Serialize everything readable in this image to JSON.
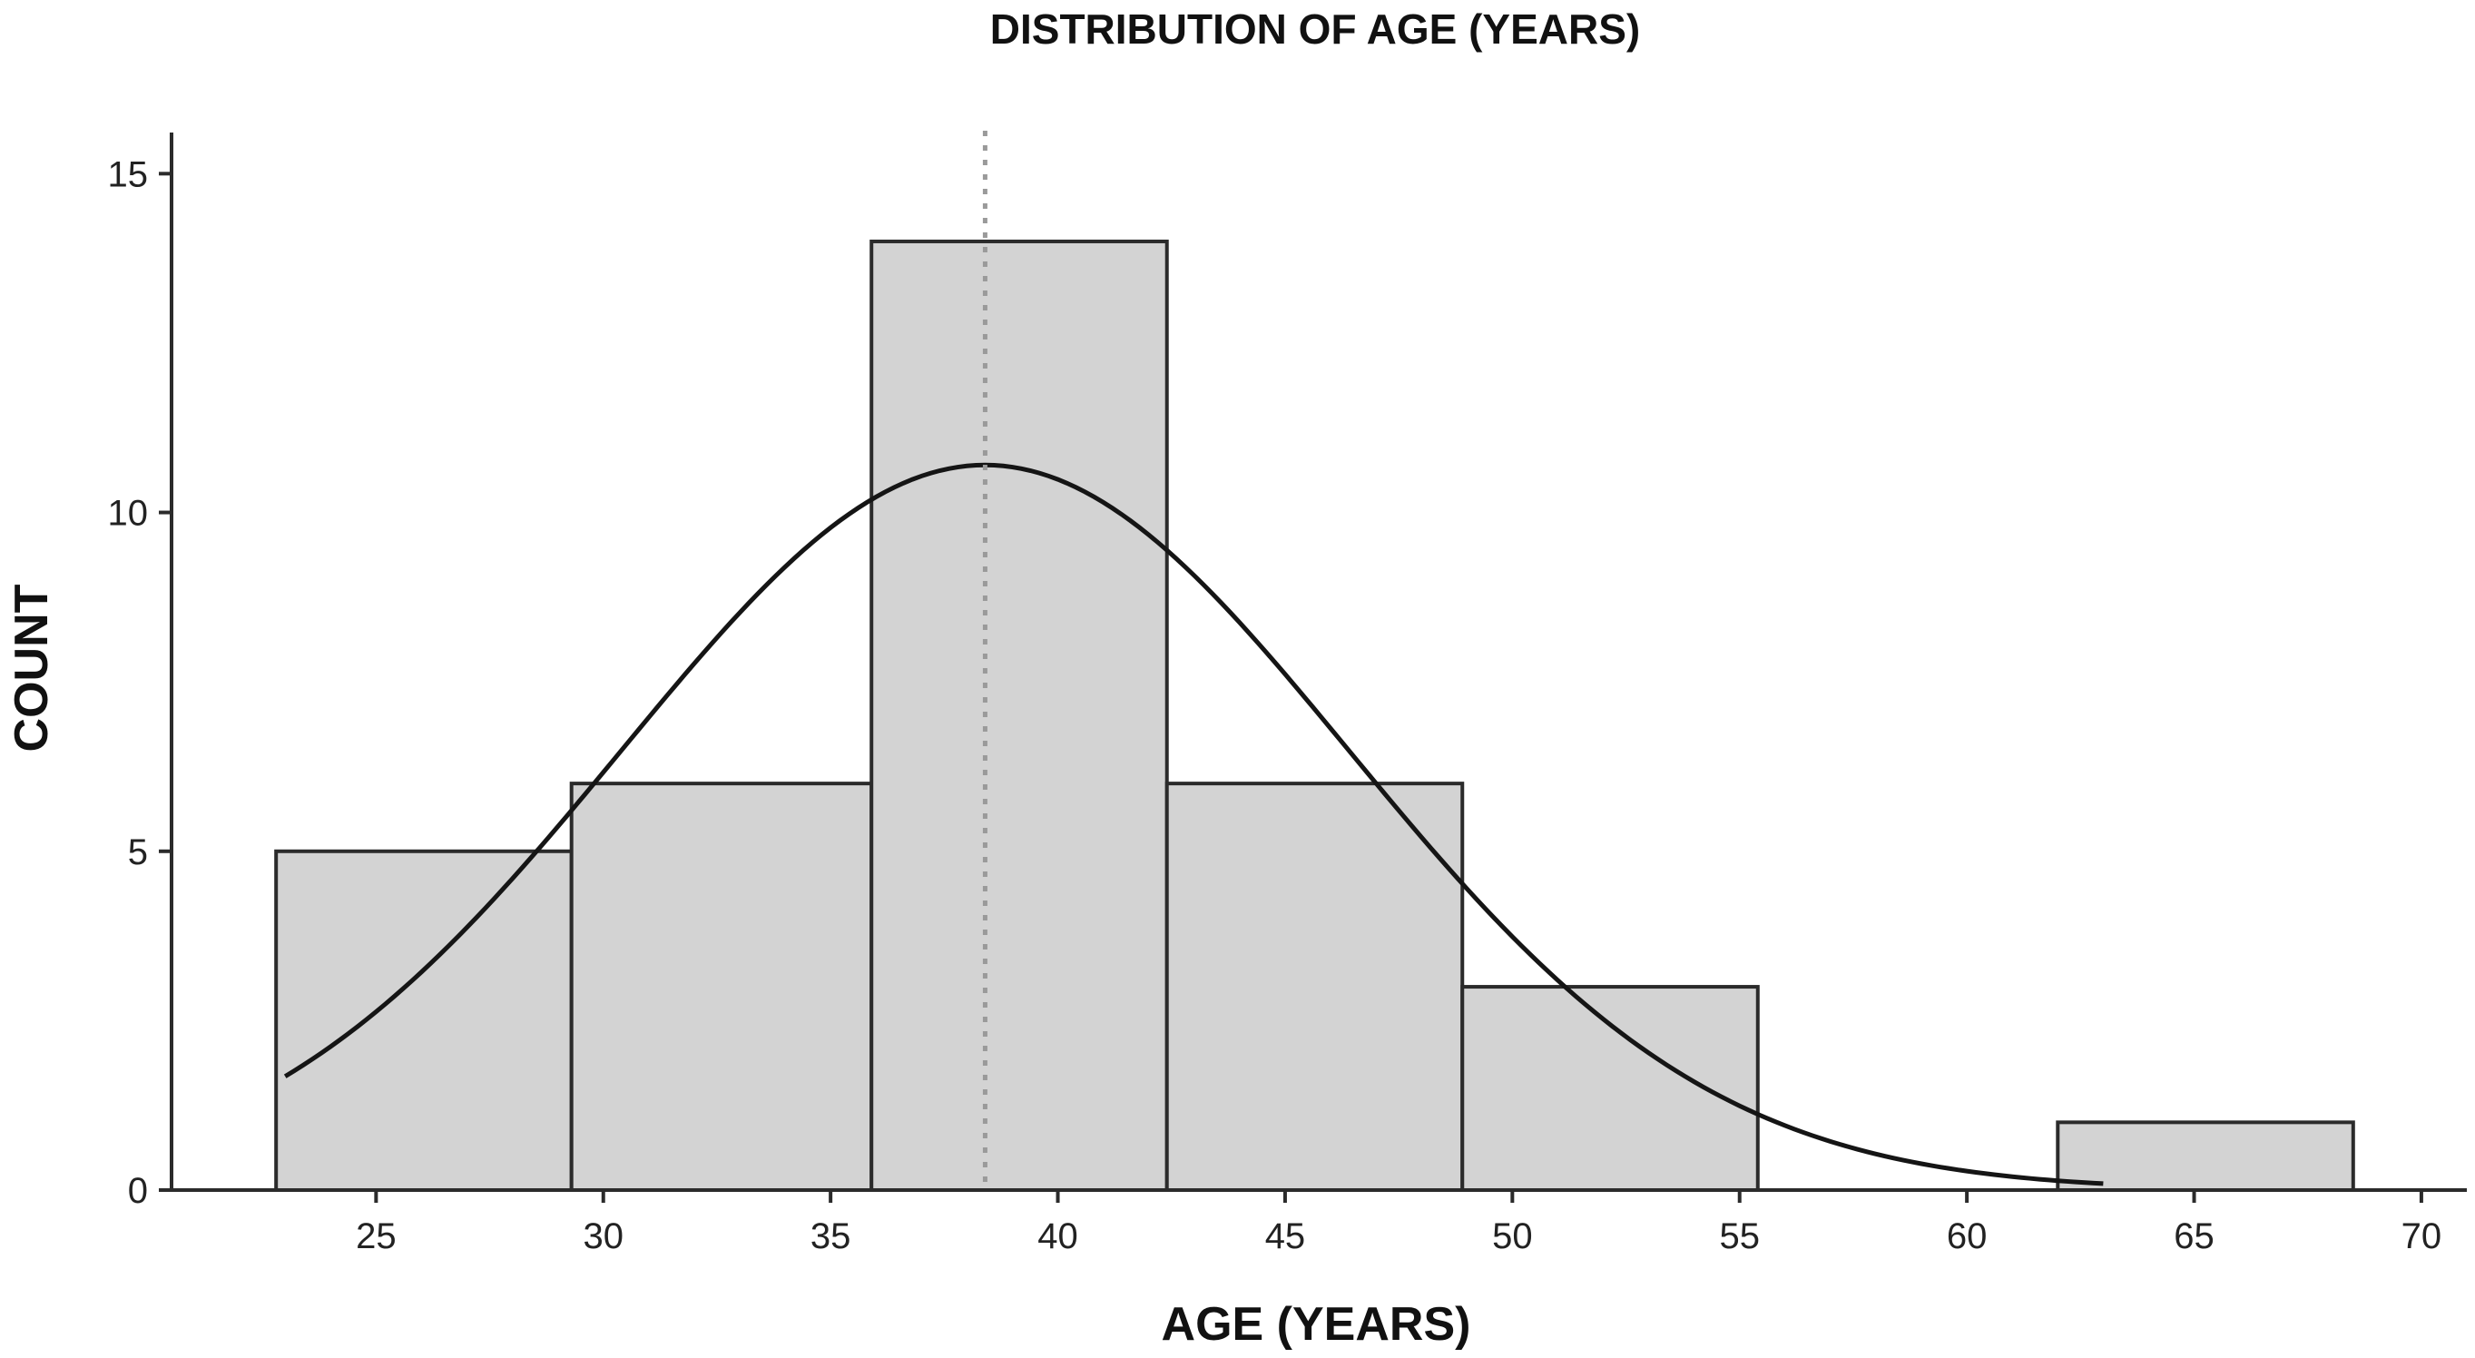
{
  "chart_data": {
    "type": "histogram",
    "title": "DISTRIBUTION OF AGE (YEARS)",
    "xlabel": "AGE (YEARS)",
    "ylabel": "COUNT",
    "xlim": [
      20.5,
      71
    ],
    "ylim": [
      0,
      15.5
    ],
    "x_ticks": [
      25,
      30,
      35,
      40,
      45,
      50,
      55,
      60,
      65,
      70
    ],
    "y_ticks": [
      0,
      5,
      10,
      15
    ],
    "bins": [
      {
        "start": 22.8,
        "end": 29.3,
        "count": 5
      },
      {
        "start": 29.3,
        "end": 35.9,
        "count": 6
      },
      {
        "start": 35.9,
        "end": 42.4,
        "count": 14
      },
      {
        "start": 42.4,
        "end": 48.9,
        "count": 6
      },
      {
        "start": 48.9,
        "end": 55.4,
        "count": 3
      },
      {
        "start": 55.4,
        "end": 62.0,
        "count": 0
      },
      {
        "start": 62.0,
        "end": 68.5,
        "count": 1
      }
    ],
    "normal_curve": {
      "mean": 38.4,
      "sd": 8.0,
      "x_range": [
        23,
        63
      ],
      "peak_count": 10.7
    },
    "mean_line": 38.4,
    "grid": false,
    "colors": {
      "bar_fill": "#d3d3d3",
      "bar_edge": "#2b2b2b",
      "curve": "#151515",
      "mean_line": "#9a9a9a"
    }
  }
}
